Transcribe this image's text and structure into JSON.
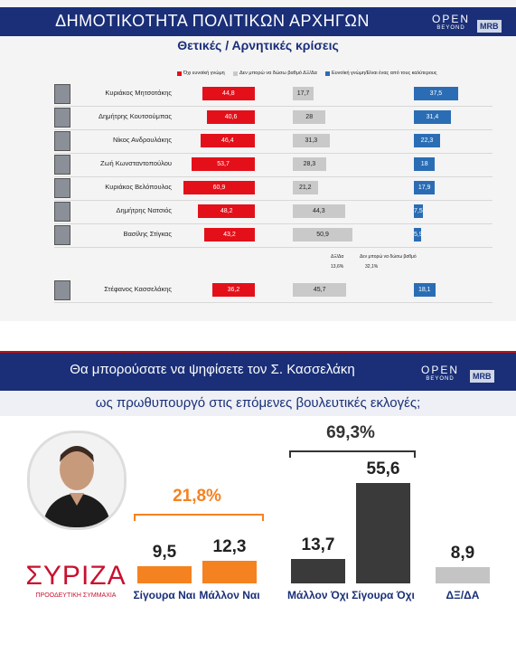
{
  "panel1": {
    "title": "ΔΗΜΟΤΙΚΟΤΗΤΑ ΠΟΛΙΤΙΚΩΝ ΑΡΧΗΓΩΝ",
    "subtitle": "Θετικές / Αρνητικές κρίσεις",
    "logo_text": "OPEN",
    "logo_sub": "BEYOND",
    "mrb": "MRB"
  },
  "panel2": {
    "question": "Θα μπορούσατε να ψηφίσετε τον Σ. Κασσελάκη",
    "subquestion": "ως πρωθυπουργό στις επόμενες βουλευτικές εκλογές;",
    "party_name": "ΣΥΡΙΖΑ",
    "party_sub": "ΠΡΟΟΔΕΥΤΙΚΗ ΣΥΜΜΑΧΙΑ"
  },
  "chart_data": [
    {
      "type": "bar",
      "title": "ΔΗΜΟΤΙΚΟΤΗΤΑ ΠΟΛΙΤΙΚΩΝ ΑΡΧΗΓΩΝ",
      "subtitle": "Θετικές / Αρνητικές κρίσεις",
      "categories": [
        "Κυριάκος Μητσοτάκης",
        "Δημήτρης Κουτσούμπας",
        "Νίκος Ανδρουλάκης",
        "Ζωή Κωνσταντοπούλου",
        "Κυριάκος Βελόπουλος",
        "Δημήτρης Νατσιός",
        "Βασίλης Στίγκας",
        "Στέφανος Κασσελάκης"
      ],
      "series": [
        {
          "name": "Όχι ευνοϊκή γνώμη",
          "color": "#e3101a",
          "values": [
            44.8,
            40.6,
            46.4,
            53.7,
            60.9,
            48.2,
            43.2,
            36.2
          ]
        },
        {
          "name": "Δεν μπορώ να δώσω βαθμό ΔΞ/Δα",
          "color": "#c9c9c9",
          "values": [
            17.7,
            28,
            31.3,
            28.3,
            21.2,
            44.3,
            50.9,
            45.7
          ]
        },
        {
          "name": "Ευνοϊκή γνώμη/Είναι ένας από τους καλύτερους",
          "color": "#2a6db5",
          "values": [
            37.5,
            31.4,
            22.3,
            18,
            17.9,
            7.5,
            5.9,
            18.1
          ]
        }
      ],
      "kasselakis_split": {
        "label_dxda": "ΔΞ/Δα",
        "value_dxda": "13,6%",
        "label_cant": "Δεν μπορώ να δώσω βαθμό",
        "value_cant": "32,1%"
      }
    },
    {
      "type": "bar",
      "title": "Θα μπορούσατε να ψηφίσετε τον Σ. Κασσελάκη",
      "categories": [
        "Σίγουρα Ναι",
        "Μάλλον Ναι",
        "Μάλλον Όχι",
        "Σίγουρα Όχι",
        "ΔΞ/ΔΑ"
      ],
      "values": [
        9.5,
        12.3,
        13.7,
        55.6,
        8.9
      ],
      "value_labels": [
        "9,5",
        "12,3",
        "13,7",
        "55,6",
        "8,9"
      ],
      "colors": [
        "#f58220",
        "#f58220",
        "#3a3a3a",
        "#3a3a3a",
        "#c4c4c4"
      ],
      "groups": [
        {
          "label": "21,8%",
          "color": "#f58220"
        },
        {
          "label": "69,3%",
          "color": "#333333"
        }
      ]
    }
  ]
}
